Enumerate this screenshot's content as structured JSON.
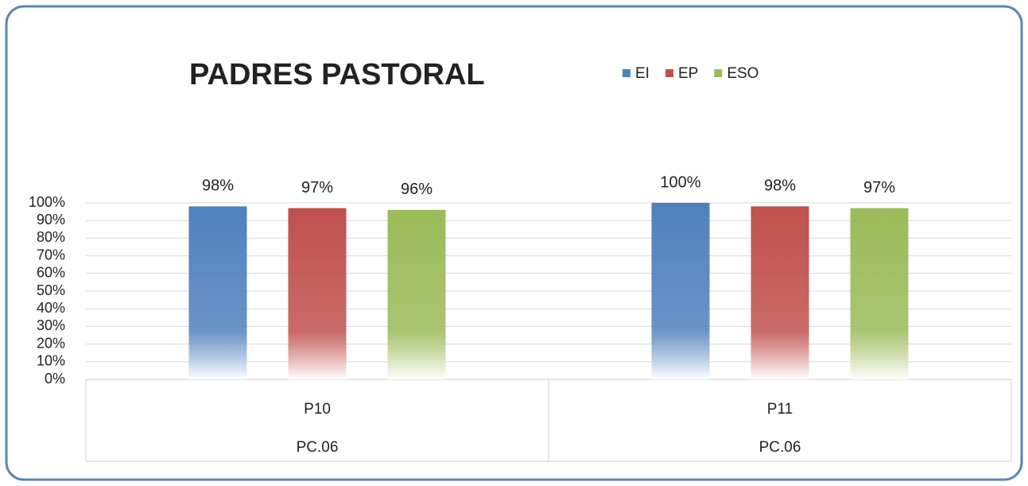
{
  "chart_data": {
    "type": "bar",
    "title": "PADRES PASTORAL",
    "categories": [
      "P10",
      "P11"
    ],
    "category_groups": [
      "PC.06",
      "PC.06"
    ],
    "series": [
      {
        "name": "EI",
        "color": "#4f81bd",
        "values": [
          98,
          100
        ],
        "value_labels": [
          "98%",
          "100%"
        ]
      },
      {
        "name": "EP",
        "color": "#c0504d",
        "values": [
          97,
          98
        ],
        "value_labels": [
          "97%",
          "98%"
        ]
      },
      {
        "name": "ESO",
        "color": "#9bbb59",
        "values": [
          96,
          97
        ],
        "value_labels": [
          "96%",
          "97%"
        ]
      }
    ],
    "ylim": [
      0,
      100
    ],
    "yticks": [
      {
        "value": 0,
        "label": "0%"
      },
      {
        "value": 10,
        "label": "10%"
      },
      {
        "value": 20,
        "label": "20%"
      },
      {
        "value": 30,
        "label": "30%"
      },
      {
        "value": 40,
        "label": "40%"
      },
      {
        "value": 50,
        "label": "50%"
      },
      {
        "value": 60,
        "label": "60%"
      },
      {
        "value": 70,
        "label": "70%"
      },
      {
        "value": 80,
        "label": "80%"
      },
      {
        "value": 90,
        "label": "90%"
      },
      {
        "value": 100,
        "label": "100%"
      }
    ],
    "grid": true
  }
}
